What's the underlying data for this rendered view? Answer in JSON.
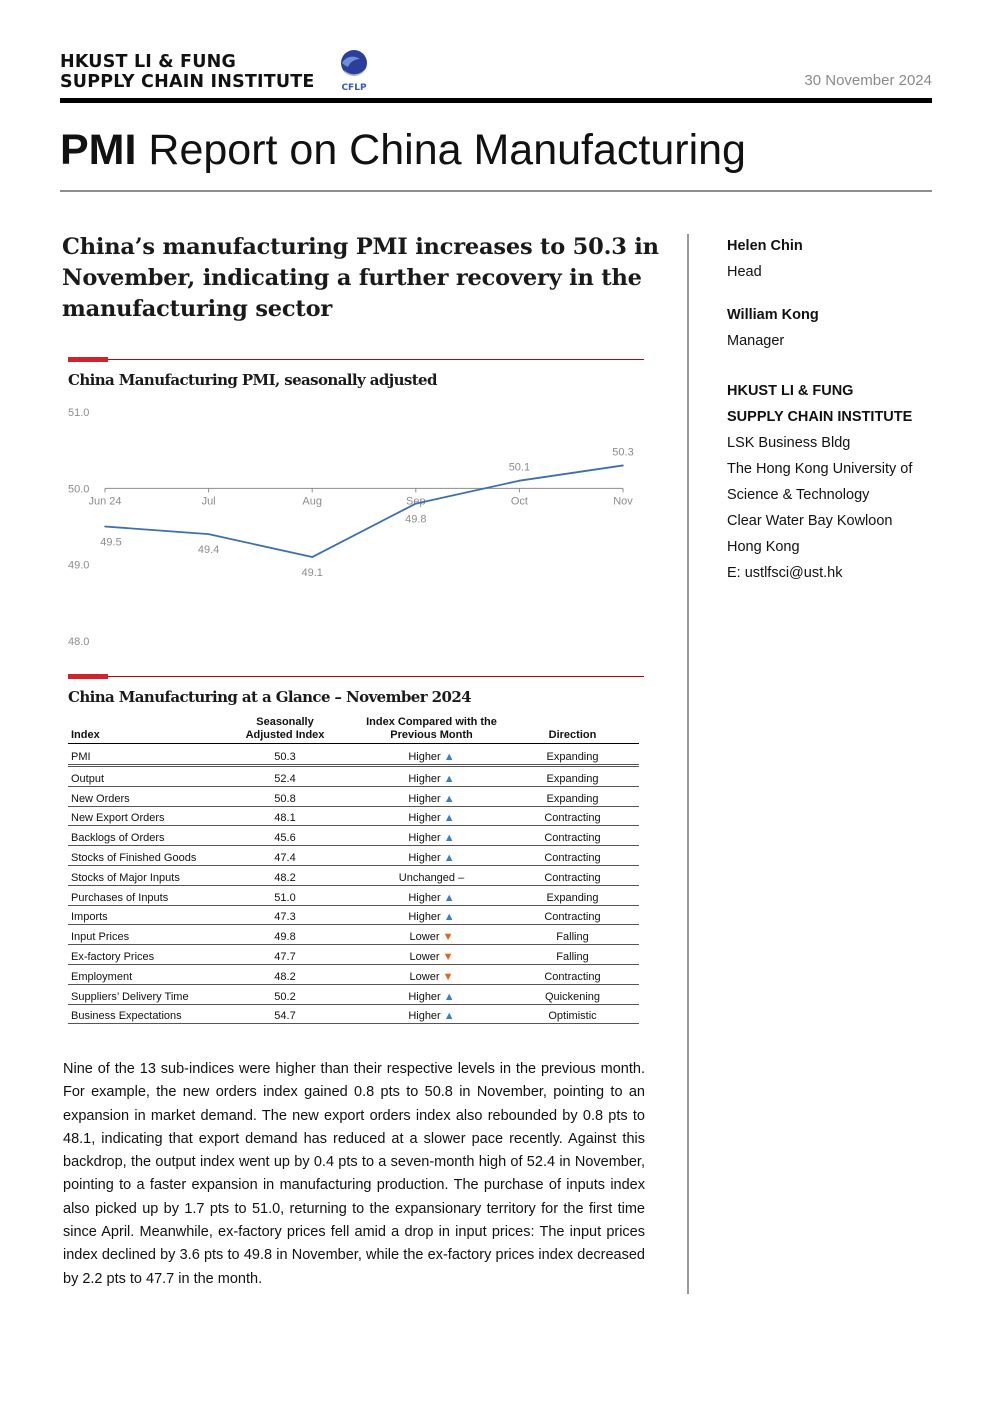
{
  "header": {
    "org_line1": "HKUST LI & FUNG",
    "org_line2": "SUPPLY CHAIN INSTITUTE",
    "partner_logo_text": "CFLP",
    "date": "30 November 2024"
  },
  "report_title": {
    "bold": "PMI",
    "rest": " Report on China Manufacturing"
  },
  "headline": "China’s manufacturing PMI increases to 50.3 in November, indicating a further recovery in the manufacturing sector",
  "chart_section_title": "China Manufacturing PMI, seasonally adjusted",
  "chart_data": {
    "type": "line",
    "categories": [
      "Jun 24",
      "Jul",
      "Aug",
      "Sep",
      "Oct",
      "Nov"
    ],
    "series": [
      {
        "values": [
          49.5,
          49.4,
          49.1,
          49.8,
          50.1,
          50.3
        ]
      }
    ],
    "data_labels": [
      "49.5",
      "49.4",
      "49.1",
      "49.8",
      "50.1",
      "50.3"
    ],
    "ylim": [
      48.0,
      51.0
    ],
    "yticks": [
      "51.0",
      "50.0",
      "49.0",
      "48.0"
    ],
    "title": "China Manufacturing PMI, seasonally adjusted",
    "xlabel": "",
    "ylabel": "",
    "color": "#3d6fad"
  },
  "table_section_title": "China Manufacturing at a Glance – November 2024",
  "table": {
    "headers": {
      "index": "Index",
      "sa_line1": "Seasonally",
      "sa_line2": "Adjusted Index",
      "cmp_line1": "Index Compared with the",
      "cmp_line2": "Previous Month",
      "direction": "Direction"
    },
    "rows": [
      {
        "name": "PMI",
        "value": "50.3",
        "compare": "Higher",
        "arrow": "▲",
        "trend": "up",
        "direction": "Expanding"
      },
      {
        "name": "Output",
        "value": "52.4",
        "compare": "Higher",
        "arrow": "▲",
        "trend": "up",
        "direction": "Expanding"
      },
      {
        "name": "New Orders",
        "value": "50.8",
        "compare": "Higher",
        "arrow": "▲",
        "trend": "up",
        "direction": "Expanding"
      },
      {
        "name": "New Export Orders",
        "value": "48.1",
        "compare": "Higher",
        "arrow": "▲",
        "trend": "up",
        "direction": "Contracting"
      },
      {
        "name": "Backlogs of Orders",
        "value": "45.6",
        "compare": "Higher",
        "arrow": "▲",
        "trend": "up",
        "direction": "Contracting"
      },
      {
        "name": "Stocks of Finished Goods",
        "value": "47.4",
        "compare": "Higher",
        "arrow": "▲",
        "trend": "up",
        "direction": "Contracting"
      },
      {
        "name": "Stocks of Major Inputs",
        "value": "48.2",
        "compare": "Unchanged",
        "arrow": "–",
        "trend": "flat",
        "direction": "Contracting"
      },
      {
        "name": "Purchases of Inputs",
        "value": "51.0",
        "compare": "Higher",
        "arrow": "▲",
        "trend": "up",
        "direction": "Expanding"
      },
      {
        "name": "Imports",
        "value": "47.3",
        "compare": "Higher",
        "arrow": "▲",
        "trend": "up",
        "direction": "Contracting"
      },
      {
        "name": "Input Prices",
        "value": "49.8",
        "compare": "Lower",
        "arrow": "▼",
        "trend": "down",
        "direction": "Falling"
      },
      {
        "name": "Ex-factory Prices",
        "value": "47.7",
        "compare": "Lower",
        "arrow": "▼",
        "trend": "down",
        "direction": "Falling"
      },
      {
        "name": "Employment",
        "value": "48.2",
        "compare": "Lower",
        "arrow": "▼",
        "trend": "down",
        "direction": "Contracting"
      },
      {
        "name": "Suppliers’ Delivery Time",
        "value": "50.2",
        "compare": "Higher",
        "arrow": "▲",
        "trend": "up",
        "direction": "Quickening"
      },
      {
        "name": "Business Expectations",
        "value": "54.7",
        "compare": "Higher",
        "arrow": "▲",
        "trend": "up",
        "direction": "Optimistic"
      }
    ]
  },
  "body_paragraph": "Nine of the 13 sub-indices were higher than their respective levels in the previous month. For example, the new orders index gained 0.8 pts to 50.8 in November, pointing to an expansion in market demand. The new export orders index also rebounded by 0.8 pts to 48.1, indicating that export demand has reduced at a slower pace recently. Against this backdrop, the output index went up by 0.4 pts to a seven-month high of 52.4 in November, pointing to a faster expansion in manufacturing production. The purchase of inputs index also picked up by 1.7 pts to 51.0, returning to the expansionary territory for the first time since April. Meanwhile, ex-factory prices fell amid a drop in input prices: The input prices index declined by 3.6 pts to 49.8 in November, while the ex-factory prices index decreased by 2.2 pts to 47.7 in the month.",
  "sidebar": {
    "contact1_name": "Helen Chin",
    "contact1_title": "Head",
    "contact2_name": "William Kong",
    "contact2_title": "Manager",
    "org_line1": "HKUST LI & FUNG",
    "org_line2": "SUPPLY CHAIN INSTITUTE",
    "address": [
      "LSK Business Bldg",
      "The Hong Kong University of",
      "Science & Technology",
      "Clear Water Bay Kowloon",
      "Hong Kong"
    ],
    "email": "E: ustlfsci@ust.hk"
  },
  "colors": {
    "accent_red": "#d2232a",
    "up_arrow": "#3f7fbf",
    "down_arrow": "#e2651b",
    "line": "#3d6fad"
  }
}
